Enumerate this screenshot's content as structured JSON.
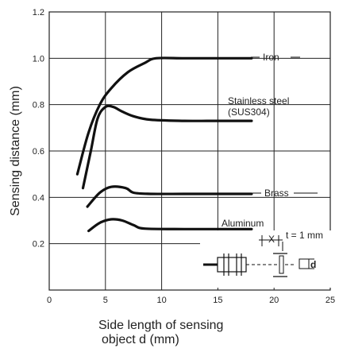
{
  "chart_data": {
    "type": "line",
    "xlabel_line1": "Side length of sensing",
    "xlabel_line2": "object d (mm)",
    "ylabel": "Sensing distance  (mm)",
    "xlim": [
      0,
      25
    ],
    "ylim": [
      0,
      1.2
    ],
    "x_ticks": [
      "0",
      "5",
      "10",
      "15",
      "20",
      "25"
    ],
    "y_ticks": [
      "0.2",
      "0.4",
      "0.6",
      "0.8",
      "1.0",
      "1.2"
    ],
    "grid": true,
    "series": [
      {
        "name": "Iron",
        "points": [
          [
            2.5,
            0.5
          ],
          [
            3.5,
            0.68
          ],
          [
            4.5,
            0.8
          ],
          [
            5.5,
            0.87
          ],
          [
            7,
            0.94
          ],
          [
            8.5,
            0.98
          ],
          [
            9.5,
            1.0
          ],
          [
            12,
            1.0
          ],
          [
            15,
            1.0
          ],
          [
            18,
            1.0
          ]
        ]
      },
      {
        "name_line1": "Stainless steel",
        "name_line2": "(SUS304)",
        "points": [
          [
            3,
            0.44
          ],
          [
            3.7,
            0.6
          ],
          [
            4.3,
            0.74
          ],
          [
            5,
            0.79
          ],
          [
            5.7,
            0.79
          ],
          [
            6.5,
            0.77
          ],
          [
            7.5,
            0.75
          ],
          [
            9,
            0.735
          ],
          [
            12,
            0.73
          ],
          [
            15,
            0.73
          ],
          [
            18,
            0.73
          ]
        ]
      },
      {
        "name": "Brass",
        "points": [
          [
            3.4,
            0.36
          ],
          [
            4.5,
            0.42
          ],
          [
            5.5,
            0.445
          ],
          [
            6.8,
            0.44
          ],
          [
            7.5,
            0.42
          ],
          [
            9,
            0.415
          ],
          [
            12,
            0.415
          ],
          [
            15,
            0.415
          ],
          [
            18,
            0.415
          ]
        ]
      },
      {
        "name": "Aluminum",
        "points": [
          [
            3.5,
            0.255
          ],
          [
            4.5,
            0.29
          ],
          [
            5.5,
            0.305
          ],
          [
            6.5,
            0.3
          ],
          [
            7.5,
            0.28
          ],
          [
            8.5,
            0.265
          ],
          [
            12,
            0.263
          ],
          [
            15,
            0.263
          ],
          [
            18,
            0.263
          ]
        ]
      }
    ],
    "inset": {
      "x_label": "X",
      "t_label": "t = 1 mm",
      "d_label": "d"
    }
  }
}
